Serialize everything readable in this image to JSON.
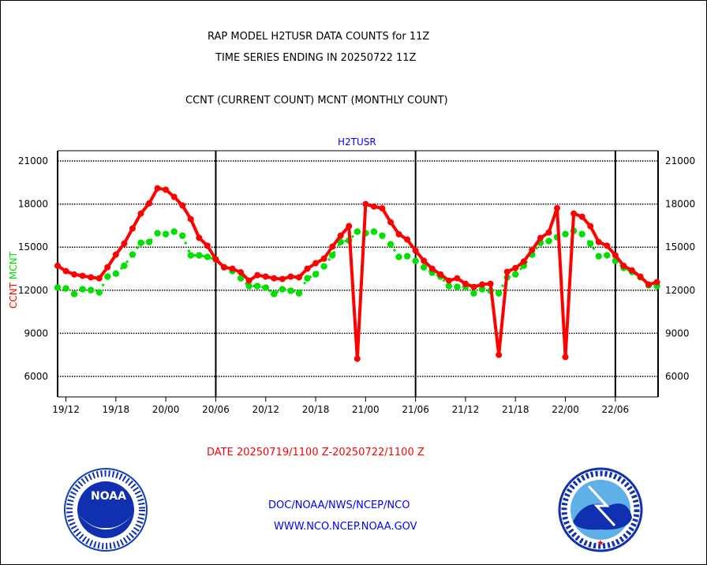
{
  "chart_data": {
    "type": "line",
    "title": "RAP MODEL H2TUSR DATA COUNTS for 11Z",
    "subtitle": "TIME SERIES ENDING IN 20250722 11Z",
    "legend_text": "CCNT (CURRENT COUNT) MCNT (MONTHLY COUNT)",
    "panel_label": "H2TUSR",
    "ylabel_left": [
      "CCNT",
      "MCNT"
    ],
    "xlabel": "DATE 20250719/1100 Z-20250722/1100 Z",
    "ylim": [
      4700,
      21700
    ],
    "yticks": [
      6000,
      9000,
      12000,
      15000,
      18000,
      21000
    ],
    "ytick_labels": [
      "6000",
      "9000",
      "12000",
      "15000",
      "18000",
      "21000"
    ],
    "xtick_hours": [
      1,
      7,
      13,
      19,
      25,
      31,
      37,
      43,
      49,
      55,
      61,
      67
    ],
    "xtick_labels": [
      "19/12",
      "19/18",
      "20/00",
      "20/06",
      "20/12",
      "20/18",
      "21/00",
      "21/06",
      "21/12",
      "21/18",
      "22/00",
      "22/06"
    ],
    "day_boundaries_hours": [
      19,
      43,
      67
    ],
    "x_start": "19/11",
    "x_step_hours": 1,
    "grid": true,
    "series": [
      {
        "name": "CCNT",
        "color": "#ff0000",
        "values": [
          13700,
          13330,
          13100,
          13000,
          12900,
          12830,
          13600,
          14480,
          15250,
          16300,
          17340,
          18050,
          19100,
          19000,
          18500,
          17900,
          16950,
          15650,
          15100,
          14150,
          13600,
          13500,
          13250,
          12670,
          13050,
          12950,
          12830,
          12780,
          12950,
          12900,
          13500,
          13880,
          14200,
          15030,
          15800,
          16460,
          7230,
          18000,
          17830,
          17700,
          16740,
          15900,
          15530,
          14760,
          14050,
          13500,
          13100,
          12670,
          12830,
          12450,
          12230,
          12400,
          12450,
          7500,
          13280,
          13550,
          14000,
          14800,
          15640,
          16020,
          17720,
          7350,
          17340,
          17120,
          16460,
          15360,
          15100,
          14430,
          13700,
          13380,
          12950,
          12400,
          12560
        ]
      },
      {
        "name": "MCNT",
        "color": "#00e000",
        "values": [
          12180,
          12120,
          11740,
          12070,
          12010,
          11850,
          12950,
          13160,
          13710,
          14480,
          15300,
          15360,
          15970,
          15910,
          16080,
          15800,
          14430,
          14430,
          14320,
          14150,
          13600,
          13330,
          12830,
          12290,
          12290,
          12180,
          11740,
          12070,
          11960,
          11790,
          12830,
          13110,
          13660,
          14430,
          15360,
          15470,
          16080,
          15970,
          16080,
          15800,
          15200,
          14320,
          14370,
          14040,
          13600,
          13220,
          12950,
          12290,
          12230,
          12230,
          11790,
          12070,
          11960,
          11790,
          12900,
          13110,
          13710,
          14480,
          15300,
          15420,
          15690,
          15910,
          16130,
          15910,
          15250,
          14370,
          14430,
          14040,
          13550,
          13280,
          12900,
          12340,
          12290
        ]
      }
    ]
  },
  "footer": {
    "line1": "DOC/NOAA/NWS/NCEP/NCO",
    "line2": "WWW.NCO.NCEP.NOAA.GOV"
  },
  "logos": {
    "left": "NOAA",
    "right": "NATIONAL WEATHER SERVICE"
  },
  "colors": {
    "title": "#000000",
    "footer": "#0000ff",
    "xlabel": "#ff0000"
  }
}
